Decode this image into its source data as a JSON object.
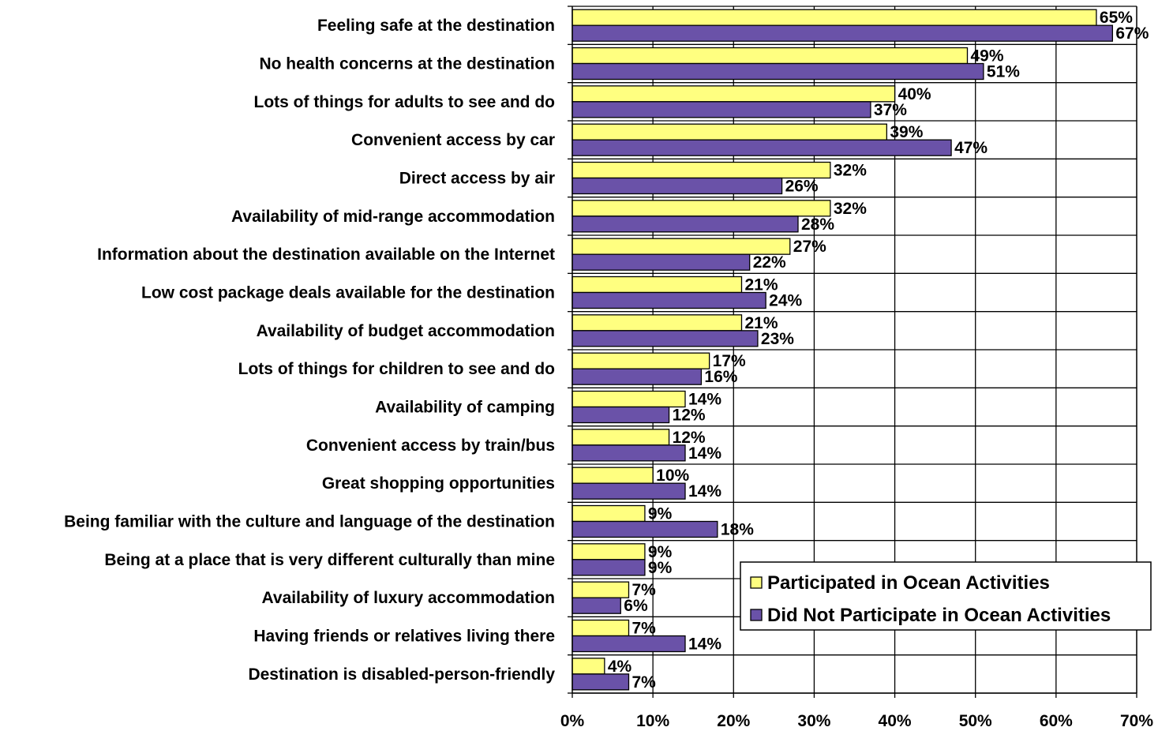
{
  "chart_data": {
    "type": "bar",
    "orientation": "horizontal",
    "categories": [
      "Feeling safe at the destination",
      "No health concerns at the destination",
      "Lots of things for adults to see and do",
      "Convenient access by car",
      "Direct access by air",
      "Availability of mid-range accommodation",
      "Information about the destination available on the Internet",
      "Low cost package deals available for the destination",
      "Availability of budget accommodation",
      "Lots of things for children to see and do",
      "Availability of camping",
      "Convenient access by train/bus",
      "Great shopping opportunities",
      "Being familiar with the culture and language of the destination",
      "Being at a place that is very different culturally than mine",
      "Availability of luxury accommodation",
      "Having friends or relatives living there",
      "Destination is disabled-person-friendly"
    ],
    "series": [
      {
        "name": "Participated in Ocean Activities",
        "color": "#FFFF80",
        "values": [
          65,
          49,
          40,
          39,
          32,
          32,
          27,
          21,
          21,
          17,
          14,
          12,
          10,
          9,
          9,
          7,
          7,
          4
        ],
        "labels": [
          "65%",
          "49%",
          "40%",
          "39%",
          "32%",
          "32%",
          "27%",
          "21%",
          "21%",
          "17%",
          "14%",
          "12%",
          "10%",
          "9%",
          "9%",
          "7%",
          "7%",
          "4%"
        ]
      },
      {
        "name": "Did Not Participate in Ocean Activities",
        "color": "#6A52A8",
        "values": [
          67,
          51,
          37,
          47,
          26,
          28,
          22,
          24,
          23,
          16,
          12,
          14,
          14,
          18,
          9,
          6,
          14,
          7
        ],
        "labels": [
          "67%",
          "51%",
          "37%",
          "47%",
          "26%",
          "28%",
          "22%",
          "24%",
          "23%",
          "16%",
          "12%",
          "14%",
          "14%",
          "18%",
          "9%",
          "6%",
          "14%",
          "7%"
        ]
      }
    ],
    "xlim": [
      0,
      70
    ],
    "xticks": [
      0,
      10,
      20,
      30,
      40,
      50,
      60,
      70
    ],
    "xtick_labels": [
      "0%",
      "10%",
      "20%",
      "30%",
      "40%",
      "50%",
      "60%",
      "70%"
    ],
    "grid": true,
    "legend_position": "bottom-right inside plot"
  }
}
